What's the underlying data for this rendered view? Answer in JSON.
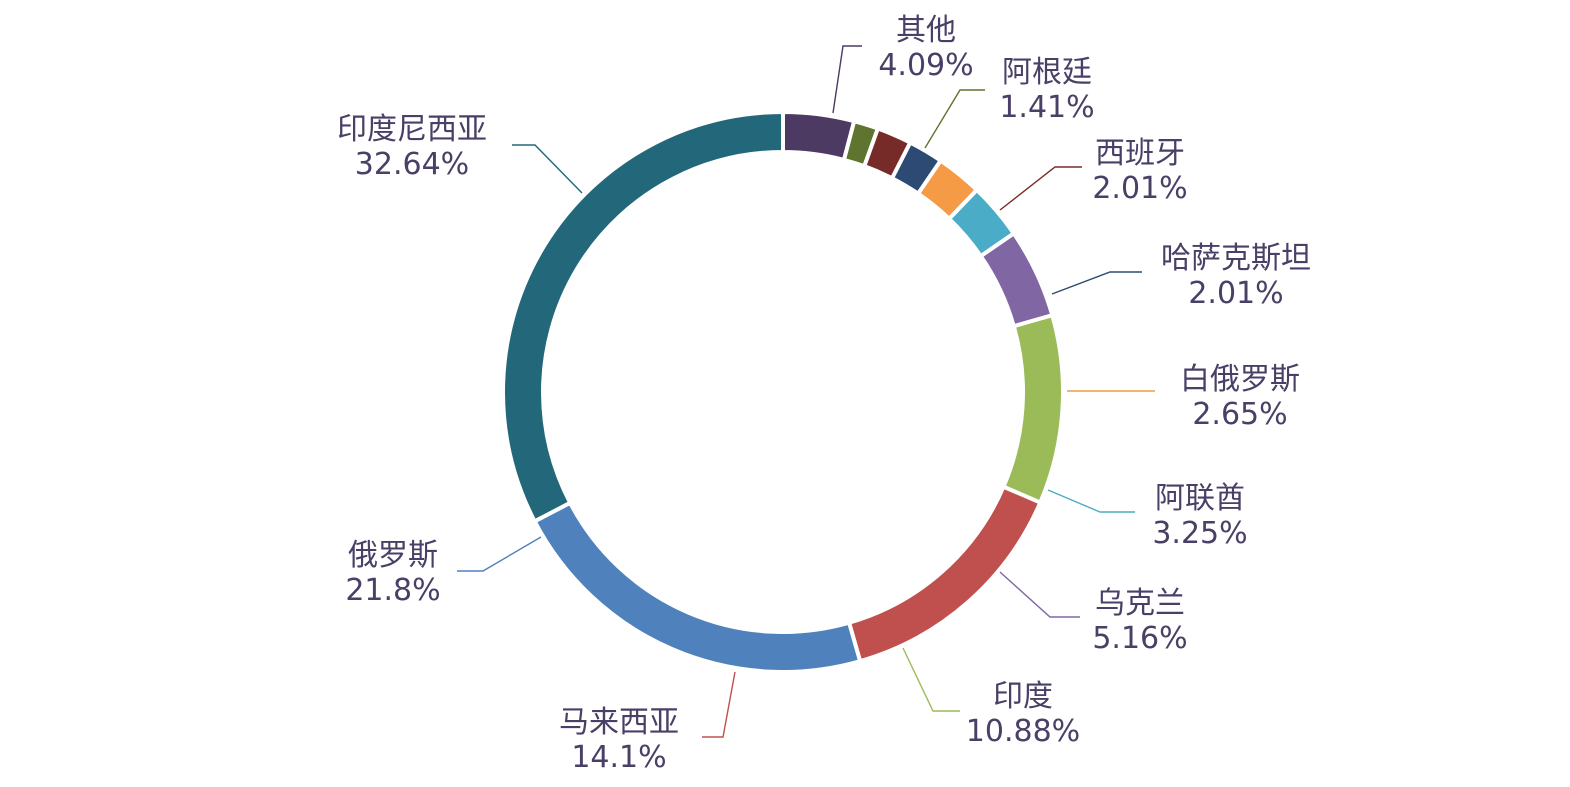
{
  "chart_data": {
    "type": "pie",
    "variant": "donut",
    "start": "12 o'clock, clockwise",
    "slices": [
      {
        "label": "其他",
        "value_label": "4.09%",
        "value": 4.09,
        "color": "#4c3a62"
      },
      {
        "label": "阿根廷",
        "value_label": "1.41%",
        "value": 1.41,
        "color": "#5f742e"
      },
      {
        "label": "西班牙",
        "value_label": "2.01%",
        "value": 2.01,
        "color": "#772b28"
      },
      {
        "label": "哈萨克斯坦",
        "value_label": "2.01%",
        "value": 2.01,
        "color": "#2c4a74"
      },
      {
        "label": "白俄罗斯",
        "value_label": "2.65%",
        "value": 2.65,
        "color": "#f59a45"
      },
      {
        "label": "阿联酋",
        "value_label": "3.25%",
        "value": 3.25,
        "color": "#4aacc6"
      },
      {
        "label": "乌克兰",
        "value_label": "5.16%",
        "value": 5.16,
        "color": "#8066a3"
      },
      {
        "label": "印度",
        "value_label": "10.88%",
        "value": 10.88,
        "color": "#9bbb59"
      },
      {
        "label": "马来西亚",
        "value_label": "14.1%",
        "value": 14.1,
        "color": "#c0504d"
      },
      {
        "label": "俄罗斯",
        "value_label": "21.8%",
        "value": 21.8,
        "color": "#4f81bd"
      },
      {
        "label": "印度尼西亚",
        "value_label": "32.64%",
        "value": 32.64,
        "color": "#23687a"
      }
    ],
    "label_color": "#4a3f66",
    "background": "#ffffff"
  }
}
